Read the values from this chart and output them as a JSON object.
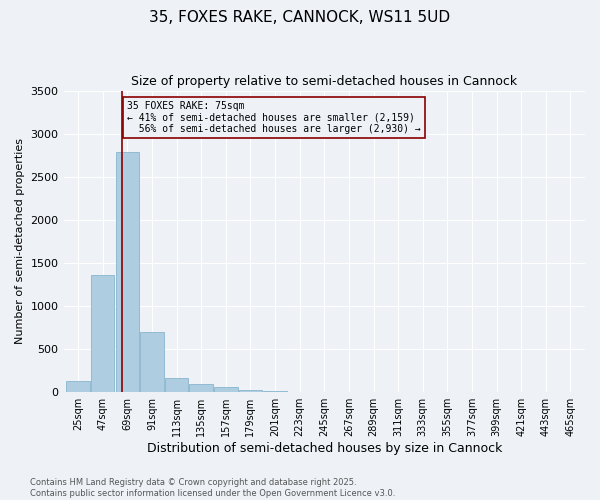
{
  "title": "35, FOXES RAKE, CANNOCK, WS11 5UD",
  "subtitle": "Size of property relative to semi-detached houses in Cannock",
  "xlabel": "Distribution of semi-detached houses by size in Cannock",
  "ylabel": "Number of semi-detached properties",
  "property_size": 75,
  "property_label": "35 FOXES RAKE: 75sqm",
  "pct_smaller": 41,
  "pct_larger": 56,
  "count_smaller": 2159,
  "count_larger": 2930,
  "bar_color": "#aecde0",
  "bar_edge_color": "#7aaec8",
  "vline_color": "#8b0000",
  "annotation_box_color": "#8b0000",
  "background_color": "#eef2f7",
  "grid_color": "#ffffff",
  "ylim": [
    0,
    3500
  ],
  "bin_starts": [
    25,
    47,
    69,
    91,
    113,
    135,
    157,
    179,
    201,
    223,
    245,
    267,
    289,
    311,
    333,
    355,
    377,
    399,
    421,
    443,
    465
  ],
  "bin_width": 22,
  "counts": [
    130,
    1360,
    2790,
    700,
    170,
    100,
    55,
    30,
    15,
    0,
    0,
    0,
    0,
    0,
    0,
    0,
    0,
    0,
    0,
    0,
    0
  ],
  "footnote1": "Contains HM Land Registry data © Crown copyright and database right 2025.",
  "footnote2": "Contains public sector information licensed under the Open Government Licence v3.0.",
  "title_fontsize": 11,
  "subtitle_fontsize": 9,
  "xlabel_fontsize": 9,
  "ylabel_fontsize": 8,
  "tick_fontsize": 7,
  "ytick_fontsize": 8
}
